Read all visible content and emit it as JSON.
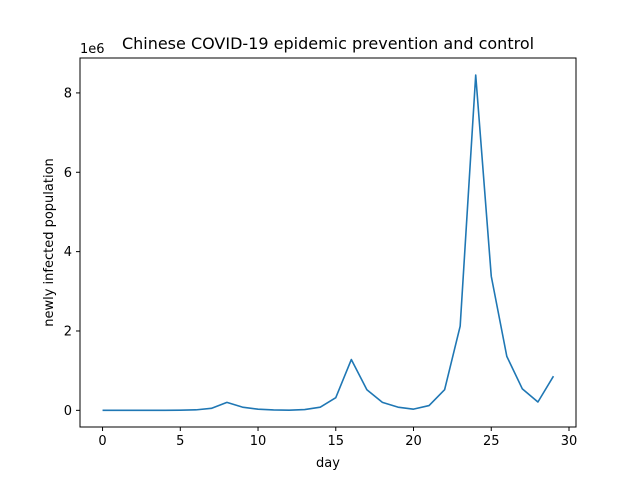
{
  "chart_data": {
    "type": "line",
    "title": "Chinese COVID-19 epidemic prevention and control",
    "xlabel": "day",
    "ylabel": "newly infected population",
    "y_offset_label": "1e6",
    "xlim": [
      -1.45,
      30.45
    ],
    "ylim": [
      -0.42,
      8.88
    ],
    "y_scale_note": "values in units of 1e6",
    "x_ticks": [
      0,
      5,
      10,
      15,
      20,
      25,
      30
    ],
    "y_ticks": [
      0,
      2,
      4,
      6,
      8
    ],
    "grid": false,
    "series": [
      {
        "color": "#1f77b4",
        "x": [
          0,
          1,
          2,
          3,
          4,
          5,
          6,
          7,
          8,
          9,
          10,
          11,
          12,
          13,
          14,
          15,
          16,
          17,
          18,
          19,
          20,
          21,
          22,
          23,
          24,
          25,
          26,
          27,
          28,
          29
        ],
        "y": [
          0.0,
          0.0,
          0.0,
          0.0,
          0.0,
          0.003,
          0.012,
          0.05,
          0.2,
          0.08,
          0.03,
          0.01,
          0.005,
          0.02,
          0.08,
          0.32,
          1.28,
          0.52,
          0.2,
          0.08,
          0.03,
          0.12,
          0.52,
          2.12,
          8.45,
          3.38,
          1.36,
          0.54,
          0.21,
          0.86
        ]
      }
    ]
  }
}
